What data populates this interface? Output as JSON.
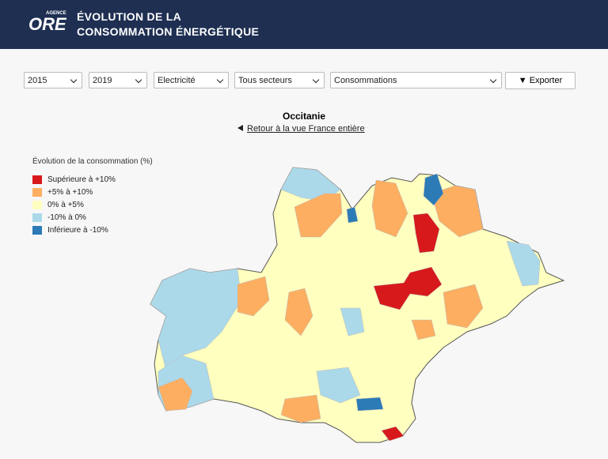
{
  "header": {
    "logo_small": "AGENCE",
    "logo": "ORE",
    "title_line1": "ÉVOLUTION DE LA",
    "title_line2": "CONSOMMATION ÉNERGÉTIQUE"
  },
  "filters": [
    "2015",
    "2019",
    "Electricité",
    "Tous secteurs",
    "Consommations"
  ],
  "export_button": "Exporter",
  "map": {
    "region": "Occitanie",
    "back_link": "Retour à la vue France entière",
    "legend": {
      "title": "Évolution de la consommation (%)",
      "items": [
        {
          "label": "Supérieure à +10%",
          "color": "#d7191c"
        },
        {
          "label": "+5% à +10%",
          "color": "#fdae61"
        },
        {
          "label": "0% à +5%",
          "color": "#ffffbf"
        },
        {
          "label": "-10% à 0%",
          "color": "#abd9e9"
        },
        {
          "label": "Inférieure à -10%",
          "color": "#2c7bb6"
        }
      ]
    }
  }
}
